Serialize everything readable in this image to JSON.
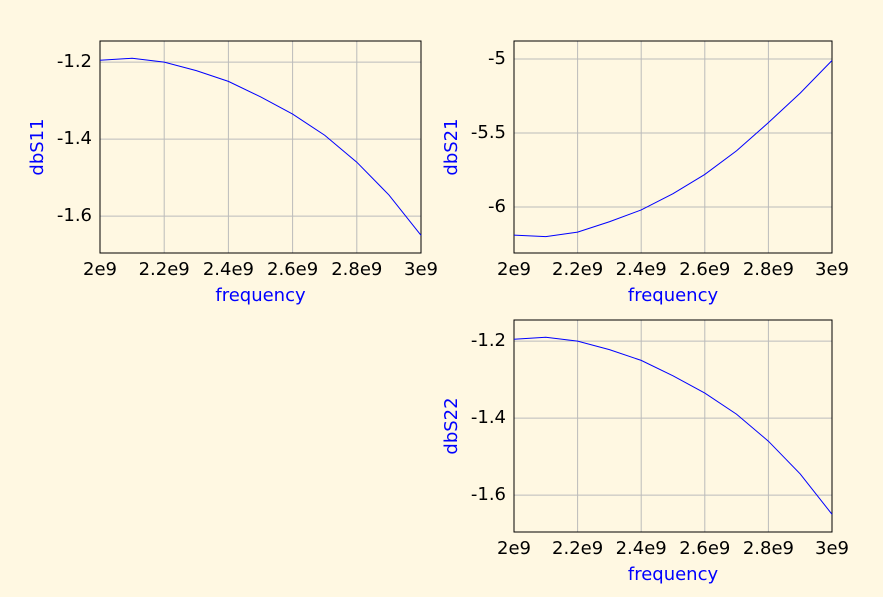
{
  "chart_data": [
    {
      "type": "line",
      "xlabel": "frequency",
      "ylabel": "dbS11",
      "color": "#0000ff",
      "grid": true,
      "x": [
        2000000000,
        2100000000,
        2200000000,
        2300000000,
        2400000000,
        2500000000,
        2600000000,
        2700000000,
        2800000000,
        2900000000,
        3000000000
      ],
      "values": [
        -1.195,
        -1.19,
        -1.2,
        -1.222,
        -1.25,
        -1.29,
        -1.335,
        -1.39,
        -1.46,
        -1.545,
        -1.65
      ],
      "xlim": [
        2000000000,
        3000000000
      ],
      "xticks": [
        {
          "value": 2000000000,
          "label": "2e9"
        },
        {
          "value": 2200000000,
          "label": "2.2e9"
        },
        {
          "value": 2400000000,
          "label": "2.4e9"
        },
        {
          "value": 2600000000,
          "label": "2.6e9"
        },
        {
          "value": 2800000000,
          "label": "2.8e9"
        },
        {
          "value": 3000000000,
          "label": "3e9"
        }
      ],
      "ylim": [
        -1.696,
        -1.145
      ],
      "yticks": [
        -1.6,
        -1.4,
        -1.2
      ]
    },
    {
      "type": "line",
      "xlabel": "frequency",
      "ylabel": "dbS21",
      "color": "#0000ff",
      "grid": true,
      "x": [
        2000000000,
        2100000000,
        2200000000,
        2300000000,
        2400000000,
        2500000000,
        2600000000,
        2700000000,
        2800000000,
        2900000000,
        3000000000
      ],
      "values": [
        -6.19,
        -6.2,
        -6.17,
        -6.1,
        -6.02,
        -5.91,
        -5.78,
        -5.62,
        -5.43,
        -5.23,
        -5.01
      ],
      "xlim": [
        2000000000,
        3000000000
      ],
      "xticks": [
        {
          "value": 2000000000,
          "label": "2e9"
        },
        {
          "value": 2200000000,
          "label": "2.2e9"
        },
        {
          "value": 2400000000,
          "label": "2.4e9"
        },
        {
          "value": 2600000000,
          "label": "2.6e9"
        },
        {
          "value": 2800000000,
          "label": "2.8e9"
        },
        {
          "value": 3000000000,
          "label": "3e9"
        }
      ],
      "ylim": [
        -6.311,
        -4.878
      ],
      "yticks": [
        -6,
        -5.5,
        -5
      ]
    },
    {
      "type": "line",
      "xlabel": "frequency",
      "ylabel": "dbS22",
      "color": "#0000ff",
      "grid": true,
      "x": [
        2000000000,
        2100000000,
        2200000000,
        2300000000,
        2400000000,
        2500000000,
        2600000000,
        2700000000,
        2800000000,
        2900000000,
        3000000000
      ],
      "values": [
        -1.195,
        -1.19,
        -1.2,
        -1.222,
        -1.25,
        -1.29,
        -1.335,
        -1.39,
        -1.46,
        -1.545,
        -1.65
      ],
      "xlim": [
        2000000000,
        3000000000
      ],
      "xticks": [
        {
          "value": 2000000000,
          "label": "2e9"
        },
        {
          "value": 2200000000,
          "label": "2.2e9"
        },
        {
          "value": 2400000000,
          "label": "2.4e9"
        },
        {
          "value": 2600000000,
          "label": "2.6e9"
        },
        {
          "value": 2800000000,
          "label": "2.8e9"
        },
        {
          "value": 3000000000,
          "label": "3e9"
        }
      ],
      "ylim": [
        -1.696,
        -1.145
      ],
      "yticks": [
        -1.6,
        -1.4,
        -1.2
      ]
    }
  ]
}
